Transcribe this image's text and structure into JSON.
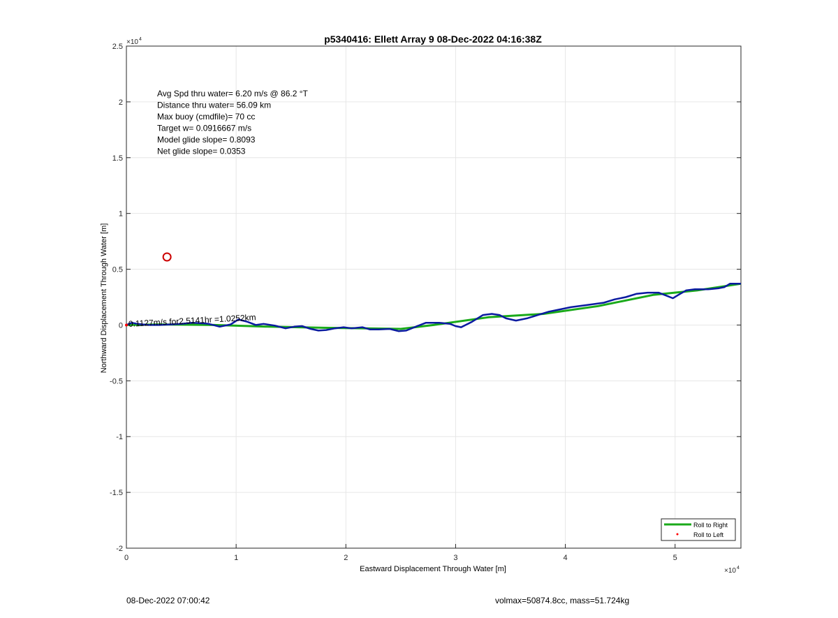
{
  "chart_data": {
    "type": "line",
    "title": "p5340416: Ellett Array 9 08-Dec-2022 04:16:38Z",
    "xlabel": "Eastward Displacement Through Water [m]",
    "ylabel": "Northward Displacement Through Water [m]",
    "x_exponent": "×10^4",
    "y_exponent": "×10^4",
    "xlim": [
      0,
      56000
    ],
    "ylim": [
      -20000,
      25000
    ],
    "x_ticks": [
      0,
      10000,
      20000,
      30000,
      40000,
      50000
    ],
    "x_tick_labels": [
      "0",
      "1",
      "2",
      "3",
      "4",
      "5"
    ],
    "y_ticks": [
      -20000,
      -15000,
      -10000,
      -5000,
      0,
      5000,
      10000,
      15000,
      20000,
      25000
    ],
    "y_tick_labels": [
      "-2",
      "-1.5",
      "-1",
      "-0.5",
      "0",
      "0.5",
      "1",
      "1.5",
      "2",
      "2.5"
    ],
    "grid": true,
    "legend_placement": "bottom-right",
    "series": [
      {
        "name": "Roll to Right",
        "color": "#1aaa1a",
        "x": [
          0,
          3000,
          8000,
          13000,
          18000,
          22000,
          25000,
          28000,
          33000,
          38000,
          43000,
          48000,
          52000,
          56000
        ],
        "y": [
          0,
          50,
          0,
          -150,
          -250,
          -300,
          -350,
          0,
          700,
          1000,
          1700,
          2700,
          3100,
          3700
        ]
      },
      {
        "name": "Roll to Left",
        "color": "#ff0000",
        "x": [
          0
        ],
        "y": [
          0
        ]
      },
      {
        "name": "",
        "color": "#0a1aa0",
        "x": [
          0,
          500,
          1000,
          1500,
          2000,
          3000,
          4000,
          5000,
          6000,
          7000,
          7500,
          8500,
          9500,
          10200,
          11000,
          11800,
          12500,
          13500,
          14500,
          15300,
          16000,
          16800,
          17500,
          18200,
          19000,
          19800,
          20500,
          21500,
          22200,
          23000,
          24000,
          24800,
          25500,
          26500,
          27300,
          28500,
          29500,
          30000,
          30500,
          31500,
          32500,
          33300,
          34000,
          34600,
          35500,
          36500,
          37500,
          38500,
          39500,
          40500,
          42000,
          43500,
          44500,
          45500,
          46500,
          47500,
          48500,
          49300,
          49800,
          50300,
          51000,
          51800,
          53000,
          54000,
          54500,
          55000,
          56000
        ],
        "y": [
          0,
          200,
          100,
          50,
          0,
          0,
          50,
          100,
          200,
          150,
          100,
          -150,
          50,
          500,
          300,
          0,
          100,
          -50,
          -300,
          -150,
          -100,
          -350,
          -500,
          -450,
          -300,
          -200,
          -300,
          -200,
          -400,
          -400,
          -350,
          -550,
          -500,
          -100,
          200,
          200,
          100,
          -100,
          -200,
          300,
          900,
          1000,
          900,
          600,
          400,
          600,
          900,
          1200,
          1400,
          1600,
          1800,
          2000,
          2300,
          2500,
          2800,
          2900,
          2900,
          2600,
          2400,
          2700,
          3100,
          3200,
          3200,
          3300,
          3400,
          3700,
          3700
        ]
      }
    ],
    "markers": [
      {
        "label": "waypoint marker",
        "x": 3700,
        "y": 6100,
        "color": "#cc0000"
      }
    ],
    "track_annotation": {
      "text": "0.1127m/s for2.5141hr =1.0252km",
      "x": 200,
      "y": 100
    },
    "stats_annotation": [
      "Avg Spd thru water=  6.20 m/s @  86.2 °T",
      "Distance thru water= 56.09 km",
      "Max buoy (cmdfile)= 70 cc",
      "Target w= 0.0916667 m/s",
      "Model glide slope= 0.8093",
      "Net glide slope= 0.0353"
    ]
  },
  "footer": {
    "left": "08-Dec-2022 07:00:42",
    "right": "volmax=50874.8cc, mass=51.724kg"
  }
}
